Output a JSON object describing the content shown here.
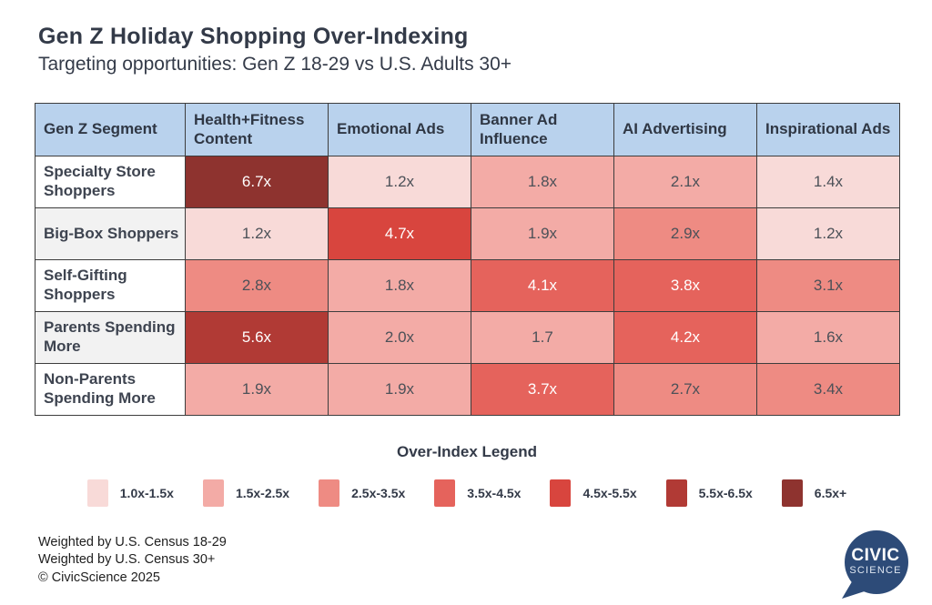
{
  "page": {
    "title": "Gen Z Holiday Shopping Over-Indexing",
    "subtitle": "Targeting opportunities: Gen Z 18-29 vs U.S. Adults 30+"
  },
  "chart_data": {
    "type": "heatmap",
    "title": "Gen Z Holiday Shopping Over-Indexing",
    "subtitle": "Targeting opportunities: Gen Z 18-29 vs U.S. Adults 30+",
    "row_header": "Gen Z Segment",
    "columns": [
      "Health+Fitness Content",
      "Emotional Ads",
      "Banner Ad Influence",
      "AI Advertising",
      "Inspirational Ads"
    ],
    "rows": [
      {
        "segment": "Specialty Store Shoppers",
        "values": [
          "6.7x",
          "1.2x",
          "1.8x",
          "2.1x",
          "1.4x"
        ]
      },
      {
        "segment": "Big-Box Shoppers",
        "values": [
          "1.2x",
          "4.7x",
          "1.9x",
          "2.9x",
          "1.2x"
        ]
      },
      {
        "segment": "Self-Gifting Shoppers",
        "values": [
          "2.8x",
          "1.8x",
          "4.1x",
          "3.8x",
          "3.1x"
        ]
      },
      {
        "segment": "Parents Spending More",
        "values": [
          "5.6x",
          "2.0x",
          "1.7",
          "4.2x",
          "1.6x"
        ]
      },
      {
        "segment": "Non-Parents Spending More",
        "values": [
          "1.9x",
          "1.9x",
          "3.7x",
          "2.7x",
          "3.4x"
        ]
      }
    ],
    "legend": {
      "title": "Over-Index Legend",
      "items": [
        {
          "label": "1.0x-1.5x",
          "color": "#f8dad8"
        },
        {
          "label": "1.5x-2.5x",
          "color": "#f3aba6"
        },
        {
          "label": "2.5x-3.5x",
          "color": "#ee8b83"
        },
        {
          "label": "3.5x-4.5x",
          "color": "#e5635c"
        },
        {
          "label": "4.5x-5.5x",
          "color": "#d8453e"
        },
        {
          "label": "5.5x-6.5x",
          "color": "#b13a35"
        },
        {
          "label": "6.5x+",
          "color": "#8e332f"
        }
      ],
      "thresholds": [
        1.5,
        2.5,
        3.5,
        4.5,
        5.5,
        6.5
      ],
      "white_text_from_bucket": 3
    }
  },
  "colors": {
    "header_bg": "#b9d2ed",
    "header_text": "#2f3744",
    "row_label_alt_bg": "#f2f2f2",
    "table_border": "#3d3d3d",
    "cell_text_dark": "#4c5158",
    "cell_text_light": "#ffffff",
    "logo_blue": "#2d4b78"
  },
  "footer": {
    "lines": [
      "Weighted by U.S. Census 18-29",
      "Weighted by U.S. Census 30+",
      "© CivicScience 2025"
    ],
    "logo": {
      "line1": "CIVIC",
      "line2": "SCIENCE"
    }
  }
}
